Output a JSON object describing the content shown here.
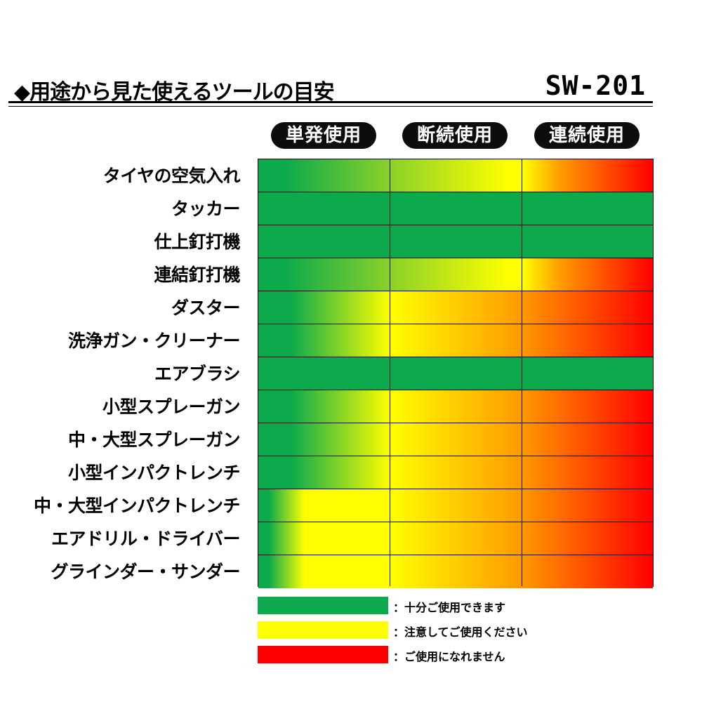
{
  "title": "◆用途から見た使えるツールの目安",
  "model": "SW-201",
  "colors": {
    "green": "#0caa4c",
    "lime": "#8bd12a",
    "yellow": "#ffff00",
    "orange": "#ff9900",
    "red": "#ff0000"
  },
  "chart_data": {
    "type": "heatmap",
    "columns": [
      "単発使用",
      "断続使用",
      "連続使用"
    ],
    "rows": [
      "タイヤの空気入れ",
      "タッカー",
      "仕上釘打機",
      "連結釘打機",
      "ダスター",
      "洗浄ガン・クリーナー",
      "エアブラシ",
      "小型スプレーガン",
      "中・大型スプレーガン",
      "小型インパクトレンチ",
      "中・大型インパクトレンチ",
      "エアドリル・ドライバー",
      "グラインダー・サンダー"
    ],
    "cells": [
      [
        "green-lime",
        "lime-yellow",
        "yellow-red"
      ],
      [
        "green",
        "green",
        "green"
      ],
      [
        "green",
        "green",
        "green"
      ],
      [
        "green-lime",
        "lime-yellow",
        "yellow-red"
      ],
      [
        "green-yellow",
        "yellow-orange",
        "orange-red"
      ],
      [
        "green-yellow",
        "yellow-orange",
        "orange-red"
      ],
      [
        "green",
        "green",
        "green"
      ],
      [
        "green-yellow",
        "yellow-orange",
        "orange-red"
      ],
      [
        "green-yellow",
        "yellow-orange",
        "orange-red"
      ],
      [
        "green-yellow",
        "yellow-orange",
        "orange-red"
      ],
      [
        "green-yellow-early",
        "yellow-orange",
        "orange-red"
      ],
      [
        "green-yellow-early",
        "yellow-orange",
        "orange-red"
      ],
      [
        "green-yellow-early",
        "yellow-orange",
        "orange-red"
      ]
    ],
    "legend": [
      {
        "color": "#0caa4c",
        "label": "：十分ご使用できます"
      },
      {
        "color": "#ffff00",
        "label": "：注意してご使用ください"
      },
      {
        "color": "#ff0000",
        "label": "：ご使用になれません"
      }
    ]
  }
}
